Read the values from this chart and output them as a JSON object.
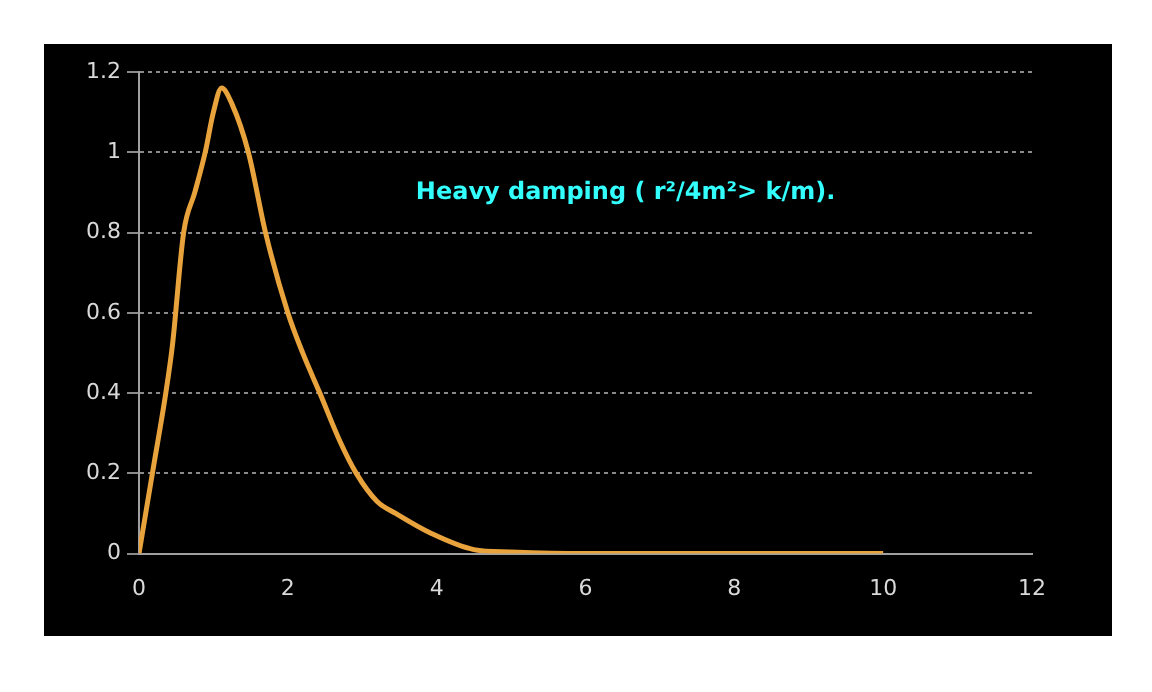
{
  "chart_data": {
    "type": "line",
    "annotations": [
      "Heavy damping ( r²/4m²> k/m)."
    ],
    "series": [
      {
        "color": "#e8a33c",
        "x": [
          0,
          0.18,
          0.36,
          0.45,
          0.6,
          0.75,
          0.89,
          1.0,
          1.11,
          1.25,
          1.47,
          1.7,
          2.0,
          2.2,
          2.43,
          2.7,
          2.92,
          3.2,
          3.45,
          3.93,
          4.5,
          5,
          6,
          7,
          8,
          9,
          10
        ],
        "values": [
          0,
          0.2,
          0.4,
          0.52,
          0.8,
          0.9,
          1.0,
          1.1,
          1.16,
          1.12,
          1.0,
          0.8,
          0.6,
          0.5,
          0.4,
          0.28,
          0.2,
          0.13,
          0.1,
          0.05,
          0.01,
          0.004,
          0,
          0,
          0,
          0,
          0
        ]
      }
    ],
    "xlim": [
      0,
      12
    ],
    "xticks": [
      0,
      2,
      4,
      6,
      8,
      10,
      12
    ],
    "ylim": [
      0,
      1.2
    ],
    "yticks": [
      0,
      0.2,
      0.4,
      0.6,
      0.8,
      1,
      1.2
    ],
    "grid": "y",
    "legend": false,
    "marker": "none",
    "line_style": "solid"
  }
}
